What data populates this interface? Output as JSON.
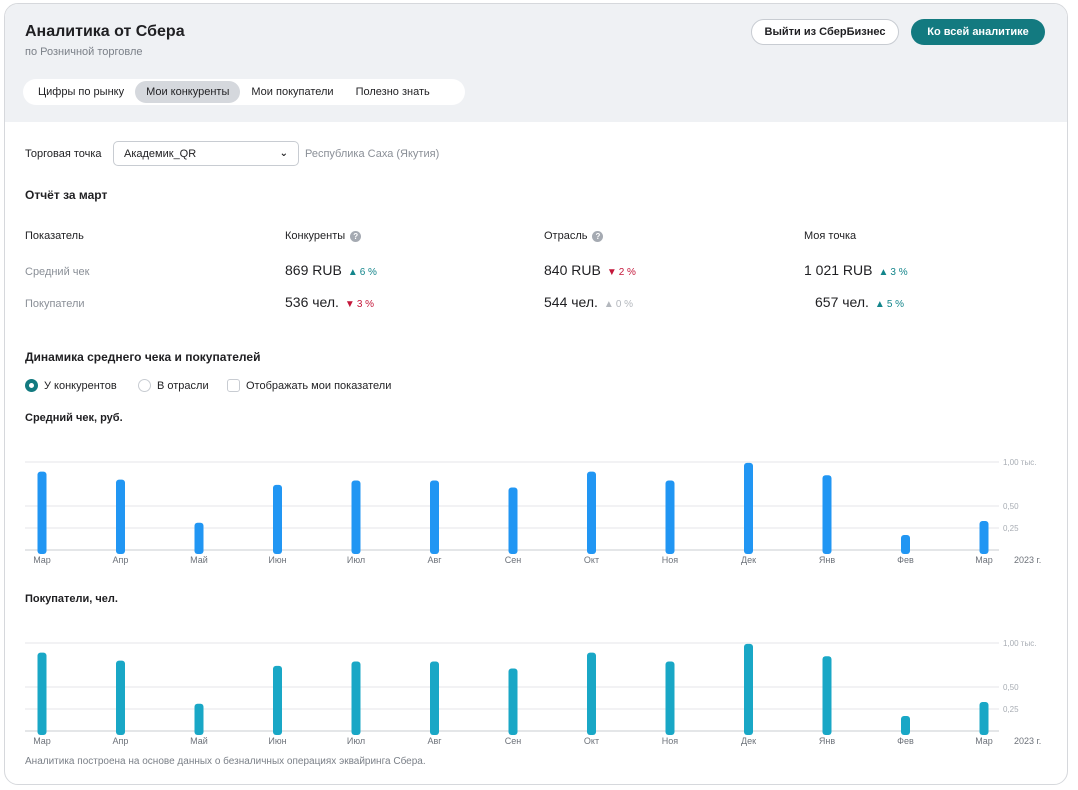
{
  "header": {
    "title": "Аналитика от Сбера",
    "subtitle": "по Розничной торговле",
    "logout_button": "Выйти из СберБизнес",
    "all_analytics_button": "Ко всей аналитике"
  },
  "tabs": [
    {
      "label": "Цифры по рынку",
      "active": false
    },
    {
      "label": "Мои конкуренты",
      "active": true
    },
    {
      "label": "Мои покупатели",
      "active": false
    },
    {
      "label": "Полезно знать",
      "active": false
    }
  ],
  "store": {
    "label": "Торговая точка",
    "selected": "Академик_QR",
    "region": "Республика Саха (Якутия)"
  },
  "report": {
    "title": "Отчёт за март",
    "columns": {
      "indicator": "Показатель",
      "competitors": "Конкуренты",
      "industry": "Отрасль",
      "my_point": "Моя точка"
    },
    "rows": [
      {
        "label": "Средний чек",
        "competitors": {
          "value": "869 RUB",
          "delta": "6 %",
          "dir": "up"
        },
        "industry": {
          "value": "840 RUB",
          "delta": "2 %",
          "dir": "down"
        },
        "my_point": {
          "value": "1 021 RUB",
          "delta": "3 %",
          "dir": "up"
        }
      },
      {
        "label": "Покупатели",
        "competitors": {
          "value": "536 чел.",
          "delta": "3 %",
          "dir": "down"
        },
        "industry": {
          "value": "544 чел.",
          "delta": "0 %",
          "dir": "neutral"
        },
        "my_point": {
          "value": "657 чел.",
          "delta": "5 %",
          "dir": "up"
        }
      }
    ]
  },
  "dynamics": {
    "title": "Динамика среднего чека и покупателей",
    "options": {
      "competitors": "У конкурентов",
      "industry": "В отрасли",
      "show_mine": "Отображать мои показатели"
    }
  },
  "colors": {
    "accent": "#137a80",
    "bar_check": "#2196f3",
    "bar_buyers": "#19a7c6",
    "up": "#13858b",
    "down": "#c4173a"
  },
  "chart_data": [
    {
      "type": "bar",
      "title": "Средний чек, руб.",
      "categories": [
        "Мар",
        "Апр",
        "Май",
        "Июн",
        "Июл",
        "Авг",
        "Сен",
        "Окт",
        "Ноя",
        "Дек",
        "Янв",
        "Фев",
        "Мар"
      ],
      "values": [
        0.89,
        0.8,
        0.31,
        0.74,
        0.79,
        0.79,
        0.71,
        0.89,
        0.79,
        0.99,
        0.85,
        0.17,
        0.33
      ],
      "y_ticks": [
        "1,00 тыс.",
        "0,50",
        "0,25"
      ],
      "year_label": "2023 г.",
      "ylim": [
        0,
        1.0
      ],
      "grid": true
    },
    {
      "type": "bar",
      "title": "Покупатели, чел.",
      "categories": [
        "Мар",
        "Апр",
        "Май",
        "Июн",
        "Июл",
        "Авг",
        "Сен",
        "Окт",
        "Ноя",
        "Дек",
        "Янв",
        "Фев",
        "Мар"
      ],
      "values": [
        0.89,
        0.8,
        0.31,
        0.74,
        0.79,
        0.79,
        0.71,
        0.89,
        0.79,
        0.99,
        0.85,
        0.17,
        0.33
      ],
      "y_ticks": [
        "1,00 тыс.",
        "0,50",
        "0,25"
      ],
      "year_label": "2023 г.",
      "ylim": [
        0,
        1.0
      ],
      "grid": true
    }
  ],
  "footnote": "Аналитика построена на основе данных о безналичных операциях эквайринга Сбера."
}
